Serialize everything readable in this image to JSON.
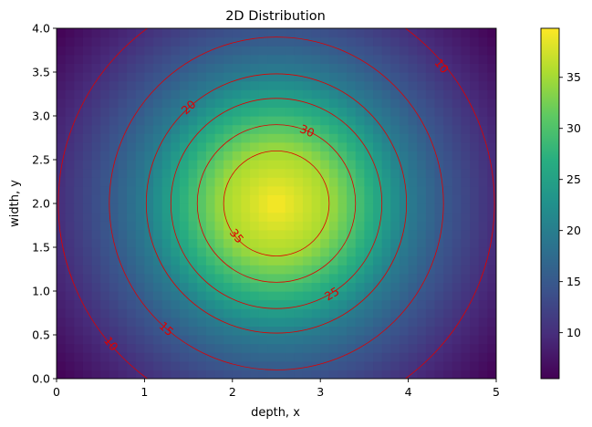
{
  "chart_data": {
    "type": "heatmap",
    "title": "2D Distribution",
    "xlabel": "depth, x",
    "ylabel": "width, y",
    "xlim": [
      0,
      5
    ],
    "ylim": [
      0,
      4
    ],
    "x_ticks": [
      "0",
      "1",
      "2",
      "3",
      "4",
      "5"
    ],
    "y_ticks": [
      "0.0",
      "0.5",
      "1.0",
      "1.5",
      "2.0",
      "2.5",
      "3.0",
      "3.5",
      "4.0"
    ],
    "colormap": "viridis",
    "colorbar": {
      "range": [
        5.5,
        39.8
      ],
      "ticks": [
        "10",
        "15",
        "20",
        "25",
        "30",
        "35"
      ]
    },
    "peak": {
      "x": 2.5,
      "y": 2.0,
      "value": 39.8
    },
    "contours": {
      "color": "#dd0000",
      "levels": [
        10,
        15,
        20,
        25,
        30,
        35
      ],
      "radii": [
        2.48,
        1.9,
        1.48,
        1.2,
        0.9,
        0.6
      ],
      "labels": [
        {
          "text": "10",
          "x": 4.38,
          "y": 3.57
        },
        {
          "text": "10",
          "x": 0.62,
          "y": 0.4
        },
        {
          "text": "15",
          "x": 1.25,
          "y": 0.57
        },
        {
          "text": "20",
          "x": 1.5,
          "y": 3.1
        },
        {
          "text": "25",
          "x": 3.13,
          "y": 0.97
        },
        {
          "text": "30",
          "x": 2.85,
          "y": 2.83
        },
        {
          "text": "35",
          "x": 2.05,
          "y": 1.63
        }
      ]
    }
  }
}
